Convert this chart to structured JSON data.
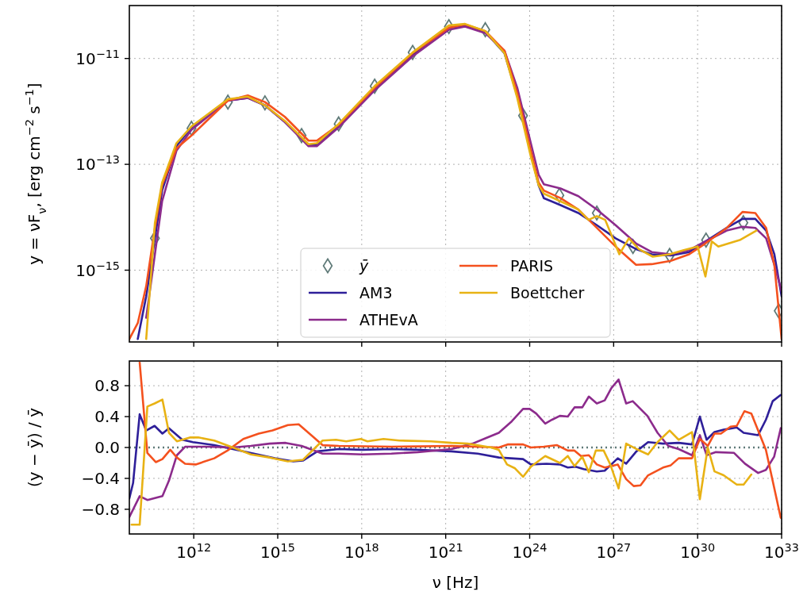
{
  "chart_data": [
    {
      "type": "line",
      "ylabel": "y = νF$_{ν}$, [erg cm$^{−2}$ s$^{−1}$]",
      "log": "xy",
      "grid": true,
      "legend": "bottom",
      "tick_labels": "y",
      "xlim": [
        5000000000.0,
        1e+33
      ],
      "ylim": [
        4.4e-17,
        1e-10
      ],
      "xticks": [
        {
          "value": 1000000000000.0,
          "label": null
        },
        {
          "value": 1000000000000000.0,
          "label": null
        },
        {
          "value": 1e+18,
          "label": null
        },
        {
          "value": 1e+21,
          "label": null
        },
        {
          "value": 1e+24,
          "label": null
        },
        {
          "value": 1e+27,
          "label": null
        },
        {
          "value": 1e+30,
          "label": null
        },
        {
          "value": 1e+33,
          "label": null
        }
      ],
      "yticks": [
        {
          "value": 1e-11,
          "label": "10$^{−11}$"
        },
        {
          "value": 1e-13,
          "label": "10$^{−13}$"
        },
        {
          "value": 1e-15,
          "label": "10$^{−15}$"
        }
      ],
      "series": [
        {
          "name": "ȳ",
          "type": "scatter",
          "marker": "diamond",
          "color": "#5f7a78",
          "x": [
            41000000000.0,
            830000000000.0,
            16600000000000.0,
            350000000000000.0,
            7100000000000000.0,
            1.5e+17,
            2.9e+18,
            6.6e+19,
            1.3e+21,
            2.6e+22,
            5.8e+23,
            1.15e+25,
            2.5e+26,
            4.9e+27,
            1e+29,
            2e+30,
            4.3e+31,
            7.9e+32
          ],
          "values": [
            4e-15,
            4.8e-13,
            1.5e-12,
            1.45e-12,
            3.5e-13,
            5.8e-13,
            3e-12,
            1.3e-11,
            4e-11,
            3.5e-11,
            8.3e-13,
            2.6e-14,
            1.2e-14,
            2.8e-15,
            1.9e-15,
            3.7e-15,
            7.9e-15,
            1.7e-16
          ]
        },
        {
          "name": "AM3",
          "color": "#2e1f99",
          "x": [
            10000000000.0,
            20000000000.0,
            41000000000.0,
            74000000000.0,
            240000000000.0,
            830000000000.0,
            16600000000000.0,
            85000000000000.0,
            350000000000000.0,
            1800000000000000.0,
            1.26e+16,
            2.5e+16,
            1.5e+17,
            2.9e+18,
            6.6e+19,
            1.3e+21,
            4.9e+21,
            2.6e+22,
            1.26e+23,
            3.6e+23,
            1.1e+24,
            2.1e+24,
            3.2e+24,
            1.26e+25,
            5.5e+25,
            2.5e+26,
            1.17e+27,
            6.3e+27,
            2.3e+28,
            1.1e+29,
            5e+29,
            1.9e+30,
            1.1e+31,
            4e+31,
            1.15e+32,
            2.8e+32,
            5.5e+32,
            1e+33
          ],
          "values": [
            5e-17,
            3.2e-16,
            4e-15,
            3.2e-14,
            2.2e-13,
            5e-13,
            1.6e-12,
            1.8e-12,
            1.3e-12,
            6.3e-13,
            2.3e-13,
            2.4e-13,
            5.4e-13,
            2.7e-12,
            1.2e-11,
            3.8e-11,
            4.2e-11,
            3.2e-11,
            1.26e-11,
            2e-12,
            1.6e-13,
            4e-14,
            2.3e-14,
            1.7e-14,
            1.2e-14,
            7.1e-15,
            4e-15,
            2.5e-15,
            2e-15,
            1.9e-15,
            2.2e-15,
            3.5e-15,
            6.3e-15,
            9.3e-15,
            9.3e-15,
            5.6e-15,
            2e-15,
            3.2e-16
          ]
        },
        {
          "name": "ATHEvA",
          "color": "#8c2b8c",
          "x": [
            20000000000.0,
            41000000000.0,
            74000000000.0,
            240000000000.0,
            830000000000.0,
            16600000000000.0,
            85000000000000.0,
            350000000000000.0,
            1800000000000000.0,
            1.26e+16,
            2.5e+16,
            1.5e+17,
            2.9e+18,
            6.6e+19,
            1.3e+21,
            4.9e+21,
            2.6e+22,
            1.26e+23,
            3.6e+23,
            1.1e+24,
            2.1e+24,
            3.2e+24,
            1.26e+25,
            5.5e+25,
            2.5e+26,
            1.17e+27,
            6.3e+27,
            2.3e+28,
            1.1e+29,
            5e+29,
            1.9e+30,
            1.1e+31,
            4e+31,
            1.15e+32,
            2.8e+32,
            5.5e+32,
            1e+33
          ],
          "values": [
            1.26e-16,
            2e-15,
            2e-14,
            1.8e-13,
            4.5e-13,
            1.6e-12,
            1.8e-12,
            1.3e-12,
            6.3e-13,
            2.2e-13,
            2.2e-13,
            5e-13,
            2.5e-12,
            1.1e-11,
            3.5e-11,
            4e-11,
            3e-11,
            1.4e-11,
            2.8e-12,
            2.5e-13,
            6.3e-14,
            4.2e-14,
            3.5e-14,
            2.5e-14,
            1.4e-14,
            7.1e-15,
            3.2e-15,
            2.2e-15,
            2e-15,
            2.4e-15,
            3.5e-15,
            5.6e-15,
            6.6e-15,
            6.3e-15,
            4e-15,
            1.26e-15,
            4e-16
          ]
        },
        {
          "name": "PARIS",
          "color": "#f4511e",
          "x": [
            5000000000.0,
            10000000000.0,
            20000000000.0,
            41000000000.0,
            74000000000.0,
            240000000000.0,
            830000000000.0,
            16600000000000.0,
            85000000000000.0,
            350000000000000.0,
            1800000000000000.0,
            1.26e+16,
            2.5e+16,
            1.5e+17,
            2.9e+18,
            6.6e+19,
            1.3e+21,
            4.9e+21,
            2.6e+22,
            1.26e+23,
            3.6e+23,
            1.1e+24,
            2.1e+24,
            3.2e+24,
            1.26e+25,
            5.5e+25,
            2.5e+26,
            1.17e+27,
            6.3e+27,
            2.3e+28,
            1.1e+29,
            5e+29,
            1.9e+30,
            1.1e+31,
            4e+31,
            1.15e+32,
            2.8e+32,
            5.5e+32,
            1e+33
          ],
          "values": [
            5e-17,
            1e-16,
            5e-16,
            6.3e-15,
            4e-14,
            2e-13,
            3.5e-13,
            1.6e-12,
            2e-12,
            1.5e-12,
            7.9e-13,
            2.8e-13,
            2.8e-13,
            5.6e-13,
            2.8e-12,
            1.26e-11,
            3.8e-11,
            4.4e-11,
            3.3e-11,
            1.4e-11,
            2.2e-12,
            1.8e-13,
            4.5e-14,
            3.2e-14,
            2.3e-14,
            1.4e-14,
            6.3e-15,
            2.8e-15,
            1.26e-15,
            1.3e-15,
            1.5e-15,
            2e-15,
            3.2e-15,
            6.3e-15,
            1.26e-14,
            1.2e-14,
            6.3e-15,
            1.26e-15,
            5e-17
          ]
        },
        {
          "name": "Boettcher",
          "color": "#e8b214",
          "x": [
            20000000000.0,
            41000000000.0,
            74000000000.0,
            240000000000.0,
            830000000000.0,
            16600000000000.0,
            85000000000000.0,
            350000000000000.0,
            1800000000000000.0,
            1.26e+16,
            2.5e+16,
            1.5e+17,
            2.9e+18,
            6.6e+19,
            1.3e+21,
            4.9e+21,
            2.6e+22,
            1.26e+23,
            3.6e+23,
            1.1e+24,
            2.1e+24,
            3.2e+24,
            1.26e+25,
            5.5e+25,
            1.26e+26,
            2.5e+26,
            5e+26,
            1.6e+27,
            3.5e+27,
            7.9e+27,
            2.5e+28,
            1e+29,
            3.2e+29,
            1e+30,
            1.9e+30,
            3.2e+30,
            5.5e+30,
            3.2e+31,
            1.26e+32
          ],
          "values": [
            5e-17,
            7.9e-15,
            4.5e-14,
            2.5e-13,
            5.2e-13,
            1.7e-12,
            1.9e-12,
            1.3e-12,
            6.6e-13,
            2.4e-13,
            2.5e-13,
            5.8e-13,
            3e-12,
            1.3e-11,
            4.2e-11,
            4.5e-11,
            3.3e-11,
            1.26e-11,
            1.8e-12,
            1.4e-13,
            4e-14,
            2.8e-14,
            2e-14,
            1.4e-14,
            8.9e-15,
            1.05e-14,
            8.9e-15,
            2e-15,
            4e-15,
            2.5e-15,
            1.8e-15,
            2e-15,
            2.4e-15,
            2.8e-15,
            7.6e-16,
            3.5e-15,
            2.8e-15,
            3.7e-15,
            5.6e-15
          ]
        }
      ]
    },
    {
      "type": "line",
      "xlabel": "ν [Hz]",
      "ylabel": "(y − ȳ) / ȳ",
      "log": "x",
      "grid": true,
      "xlim": [
        5000000000.0,
        1e+33
      ],
      "ylim": [
        -1.12,
        1.12
      ],
      "xticks": [
        {
          "value": 1000000000000.0,
          "label": "10$^{12}$"
        },
        {
          "value": 1000000000000000.0,
          "label": "10$^{15}$"
        },
        {
          "value": 1e+18,
          "label": "10$^{18}$"
        },
        {
          "value": 1e+21,
          "label": "10$^{21}$"
        },
        {
          "value": 1e+24,
          "label": "10$^{24}$"
        },
        {
          "value": 1e+27,
          "label": "10$^{27}$"
        },
        {
          "value": 1e+30,
          "label": "10$^{30}$"
        },
        {
          "value": 1e+33,
          "label": "10$^{33}$"
        }
      ],
      "yticks": [
        0.8,
        0.4,
        {
          "value": 0,
          "label": "0.0"
        },
        {
          "value": -0.4,
          "label": "−0.4"
        },
        {
          "value": -0.8,
          "label": "−0.8"
        }
      ],
      "ref_lines": [
        {
          "axis": "y",
          "value": 0,
          "color": "#5f7a78",
          "line_style": "dotted"
        }
      ],
      "series": [
        {
          "color": "#2e1f99",
          "x": [
            5000000000.0,
            6800000000.0,
            11700000000.0,
            20000000000.0,
            40000000000.0,
            76000000000.0,
            130000000000.0,
            390000000000.0,
            930000000000.0,
            5400000000000.0,
            25000000000000.0,
            140000000000000.0,
            790000000000000.0,
            3600000000000000.0,
            7900000000000000.0,
            2.6e+16,
            1.5e+17,
            1.05e+18,
            1.15e+19,
            1e+20,
            1.6e+21,
            1.4e+22,
            7.9e+22,
            5.8e+23,
            1.1e+24,
            4e+24,
            1.2e+25,
            2.3e+25,
            4.4e+25,
            8.5e+25,
            2.5e+26,
            4.8e+26,
            1.4e+27,
            2.8e+27,
            6.5e+27,
            1.7e+28,
            5.8e+28,
            2.1e+29,
            6.3e+29,
            1.2e+30,
            2.1e+30,
            4e+30,
            8.5e+30,
            2.5e+31,
            4.4e+31,
            1.45e+32,
            2.75e+32,
            4.8e+32,
            9.3e+32
          ],
          "values": [
            -0.66,
            -0.46,
            0.43,
            0.22,
            0.28,
            0.18,
            0.25,
            0.1,
            0.07,
            0.03,
            -0.02,
            -0.08,
            -0.14,
            -0.18,
            -0.17,
            -0.05,
            -0.02,
            -0.03,
            -0.02,
            -0.03,
            -0.05,
            -0.08,
            -0.13,
            -0.15,
            -0.22,
            -0.21,
            -0.22,
            -0.26,
            -0.25,
            -0.28,
            -0.31,
            -0.3,
            -0.14,
            -0.21,
            -0.05,
            0.07,
            0.05,
            0.06,
            0.04,
            0.4,
            0.1,
            0.2,
            0.23,
            0.26,
            0.19,
            0.16,
            0.36,
            0.6,
            0.68
          ]
        },
        {
          "color": "#8c2b8c",
          "x": [
            5000000000.0,
            11700000000.0,
            22000000000.0,
            76000000000.0,
            130000000000.0,
            250000000000.0,
            490000000000.0,
            2750000000000.0,
            25000000000000.0,
            110000000000000.0,
            510000000000000.0,
            1900000000000000.0,
            7100000000000000.0,
            4e+16,
            1.5e+17,
            1.05e+18,
            1.15e+19,
            1e+20,
            1.6e+21,
            9.1e+21,
            2.7e+22,
            7.9e+22,
            2.3e+23,
            5.8e+23,
            1e+24,
            1.7e+24,
            3.6e+24,
            6.3e+24,
            1.2e+25,
            2.3e+25,
            4e+25,
            7.6e+25,
            1.3e+26,
            2.5e+26,
            4.8e+26,
            8.3e+26,
            1.5e+27,
            2.8e+27,
            4.8e+27,
            1.6e+28,
            3.7e+28,
            8.9e+28,
            2.1e+29,
            6.3e+29,
            1.2e+30,
            2.1e+30,
            4.5e+30,
            2e+31,
            4.9e+31,
            1.45e+32,
            2.75e+32,
            5.4e+32,
            9.3e+32
          ],
          "values": [
            -0.9,
            -0.63,
            -0.68,
            -0.63,
            -0.43,
            -0.1,
            0.01,
            0.01,
            0.0,
            0.02,
            0.05,
            0.06,
            0.02,
            -0.08,
            -0.08,
            -0.09,
            -0.08,
            -0.06,
            -0.02,
            0.05,
            0.12,
            0.19,
            0.34,
            0.5,
            0.5,
            0.44,
            0.31,
            0.36,
            0.41,
            0.4,
            0.52,
            0.52,
            0.66,
            0.57,
            0.61,
            0.77,
            0.88,
            0.57,
            0.6,
            0.41,
            0.19,
            0.02,
            -0.02,
            -0.1,
            0.16,
            -0.1,
            -0.06,
            -0.07,
            -0.21,
            -0.33,
            -0.29,
            -0.12,
            0.25
          ]
        },
        {
          "color": "#f4511e",
          "x": [
            11700000000.0,
            22000000000.0,
            44000000000.0,
            76000000000.0,
            145000000000.0,
            250000000000.0,
            490000000000.0,
            1170000000000.0,
            5400000000000.0,
            16000000000000.0,
            59000000000000.0,
            210000000000000.0,
            650000000000000.0,
            2300000000000000.0,
            5600000000000000.0,
            1.7e+16,
            4e+16,
            1.5e+17,
            1.15e+19,
            1.6e+21,
            7.9e+22,
            1.7e+23,
            5.8e+23,
            1.1e+24,
            3.2e+24,
            9.5e+24,
            2.3e+25,
            4e+25,
            6.8e+25,
            1.3e+26,
            2.5e+26,
            4.8e+26,
            1.4e+27,
            2.8e+27,
            5.2e+27,
            9.1e+27,
            1.7e+28,
            5.8e+28,
            1.1e+29,
            2.1e+29,
            6.3e+29,
            1.2e+30,
            2.3e+30,
            4e+30,
            6.8e+30,
            1.5e+31,
            2.5e+31,
            4.7e+31,
            8.3e+31,
            2.75e+32,
            9.3e+32
          ],
          "values": [
            1.1,
            -0.07,
            -0.19,
            -0.15,
            -0.03,
            -0.13,
            -0.21,
            -0.22,
            -0.14,
            -0.04,
            0.11,
            0.18,
            0.22,
            0.29,
            0.3,
            0.15,
            0.03,
            0.02,
            0.01,
            0.02,
            0.0,
            0.04,
            0.04,
            0.0,
            0.01,
            0.03,
            -0.04,
            -0.04,
            -0.11,
            -0.1,
            -0.22,
            -0.26,
            -0.22,
            -0.41,
            -0.5,
            -0.49,
            -0.36,
            -0.26,
            -0.23,
            -0.14,
            -0.14,
            0.11,
            0.02,
            0.18,
            0.18,
            0.27,
            0.28,
            0.47,
            0.44,
            -0.03,
            -0.91
          ]
        },
        {
          "color": "#e8b214",
          "x": [
            6000000000.0,
            11700000000.0,
            22000000000.0,
            40000000000.0,
            76000000000.0,
            130000000000.0,
            250000000000.0,
            760000000000.0,
            1450000000000.0,
            5400000000000.0,
            25000000000000.0,
            110000000000000.0,
            510000000000000.0,
            2300000000000000.0,
            7900000000000000.0,
            4e+16,
            1.2e+17,
            2.8e+17,
            9.3e+17,
            1.6e+18,
            6e+18,
            2.2e+19,
            3e+20,
            1.6e+21,
            6e+21,
            4.2e+22,
            7.9e+22,
            1.55e+23,
            3e+23,
            5.8e+23,
            1.1e+24,
            3.6e+24,
            1.2e+25,
            2.3e+25,
            4e+25,
            7.6e+25,
            1.3e+26,
            2.3e+26,
            4.4e+26,
            7.6e+26,
            1.5e+27,
            2.8e+27,
            6.5e+27,
            1.7e+28,
            3.7e+28,
            1e+29,
            2.1e+29,
            6.3e+29,
            1.2e+30,
            2.3e+30,
            4e+30,
            8.5e+30,
            2.5e+31,
            4.4e+31,
            8.3e+31
          ],
          "values": [
            -1.0,
            -1.0,
            0.53,
            0.57,
            0.62,
            0.19,
            0.08,
            0.13,
            0.13,
            0.09,
            0.0,
            -0.09,
            -0.13,
            -0.18,
            -0.16,
            0.09,
            0.1,
            0.08,
            0.11,
            0.08,
            0.11,
            0.09,
            0.08,
            0.06,
            0.05,
            0.0,
            -0.03,
            -0.22,
            -0.27,
            -0.38,
            -0.25,
            -0.11,
            -0.2,
            -0.11,
            -0.24,
            -0.12,
            -0.32,
            -0.04,
            -0.04,
            -0.22,
            -0.53,
            0.05,
            -0.02,
            -0.09,
            0.07,
            0.22,
            0.1,
            0.2,
            -0.67,
            0.0,
            -0.31,
            -0.36,
            -0.48,
            -0.48,
            -0.35
          ]
        }
      ]
    }
  ]
}
